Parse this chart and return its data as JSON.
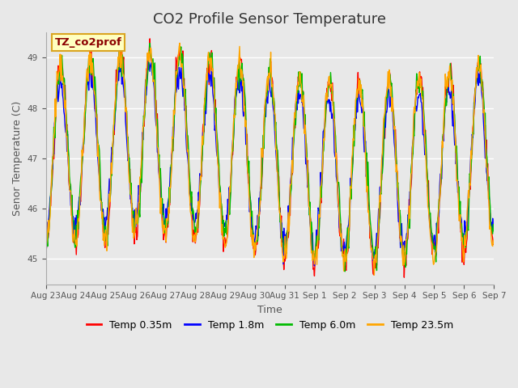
{
  "title": "CO2 Profile Sensor Temperature",
  "xlabel": "Time",
  "ylabel": "Senor Temperature (C)",
  "ylim": [
    44.5,
    49.5
  ],
  "annotation_text": "TZ_co2prof",
  "annotation_color": "#8B0000",
  "annotation_bg": "#FFFFC0",
  "annotation_border": "#DAA520",
  "series": [
    {
      "label": "Temp 0.35m",
      "color": "#FF0000"
    },
    {
      "label": "Temp 1.8m",
      "color": "#0000FF"
    },
    {
      "label": "Temp 6.0m",
      "color": "#00BB00"
    },
    {
      "label": "Temp 23.5m",
      "color": "#FFA500"
    }
  ],
  "x_tick_labels": [
    "Aug 23",
    "Aug 24",
    "Aug 25",
    "Aug 26",
    "Aug 27",
    "Aug 28",
    "Aug 29",
    "Aug 30",
    "Aug 31",
    "Sep 1",
    "Sep 2",
    "Sep 3",
    "Sep 4",
    "Sep 5",
    "Sep 6",
    "Sep 7"
  ],
  "n_days": 15,
  "pts_per_day": 48,
  "bg_color": "#E8E8E8",
  "plot_bg_color": "#E8E8E8",
  "grid_color": "#FFFFFF",
  "title_fontsize": 13,
  "axis_fontsize": 9,
  "tick_fontsize": 7.5,
  "legend_fontsize": 9,
  "line_width": 1.0
}
